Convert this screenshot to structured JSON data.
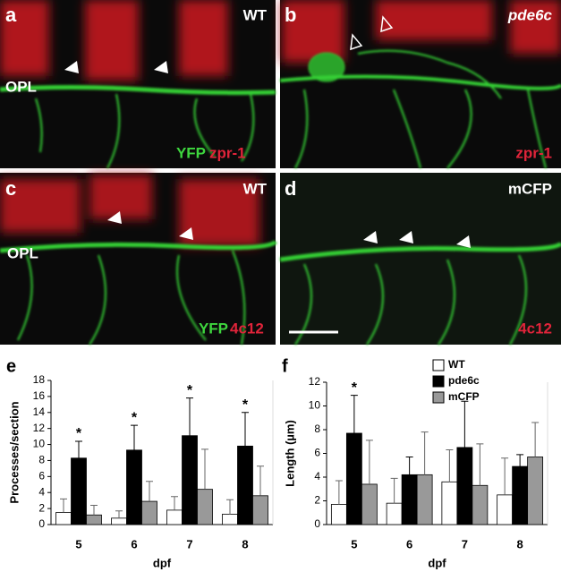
{
  "panels": [
    {
      "label": "a",
      "condition": "WT",
      "region": "OPL",
      "stain_green": "YFP",
      "stain_red": "zpr-1"
    },
    {
      "label": "b",
      "condition": "pde6c",
      "stain_red": "zpr-1"
    },
    {
      "label": "c",
      "condition": "WT",
      "region": "OPL",
      "stain_green": "YFP",
      "stain_red": "4c12"
    },
    {
      "label": "d",
      "condition": "mCFP",
      "stain_red": "4c12"
    }
  ],
  "chart_data": [
    {
      "type": "bar",
      "panel_label": "e",
      "y_label": "Processes/section",
      "x_label": "dpf",
      "categories": [
        "5",
        "6",
        "7",
        "8"
      ],
      "ylim": [
        0,
        18
      ],
      "yticks": [
        0,
        2,
        4,
        6,
        8,
        10,
        12,
        14,
        16,
        18
      ],
      "legend": false,
      "significance": [
        "*",
        "*",
        "*",
        "*"
      ],
      "series": [
        {
          "color": "#ffffff",
          "values": [
            1.5,
            0.8,
            1.8,
            1.3
          ],
          "errors": [
            1.7,
            0.9,
            1.7,
            1.8
          ]
        },
        {
          "color": "#000000",
          "values": [
            8.3,
            9.3,
            11.1,
            9.8
          ],
          "errors": [
            2.1,
            3.1,
            4.7,
            4.2
          ]
        },
        {
          "color": "#999999",
          "values": [
            1.2,
            2.9,
            4.4,
            3.6
          ],
          "errors": [
            1.2,
            2.5,
            5.0,
            3.7
          ]
        }
      ]
    },
    {
      "type": "bar",
      "panel_label": "f",
      "y_label": "Length (µm)",
      "x_label": "dpf",
      "categories": [
        "5",
        "6",
        "7",
        "8"
      ],
      "ylim": [
        0,
        12
      ],
      "yticks": [
        0,
        2,
        4,
        6,
        8,
        10,
        12
      ],
      "legend": "upper right",
      "significance": [
        "*",
        null,
        null,
        null
      ],
      "series": [
        {
          "name": "WT",
          "color": "#ffffff",
          "values": [
            1.7,
            1.8,
            3.6,
            2.5
          ],
          "errors": [
            2.0,
            2.1,
            2.7,
            3.1
          ]
        },
        {
          "name": "pde6c",
          "color": "#000000",
          "values": [
            7.7,
            4.2,
            6.5,
            4.9
          ],
          "errors": [
            3.2,
            1.5,
            3.9,
            1.0
          ]
        },
        {
          "name": "mCFP",
          "color": "#999999",
          "values": [
            3.4,
            4.2,
            3.3,
            5.7
          ],
          "errors": [
            3.7,
            3.6,
            3.5,
            2.9
          ]
        }
      ]
    }
  ]
}
